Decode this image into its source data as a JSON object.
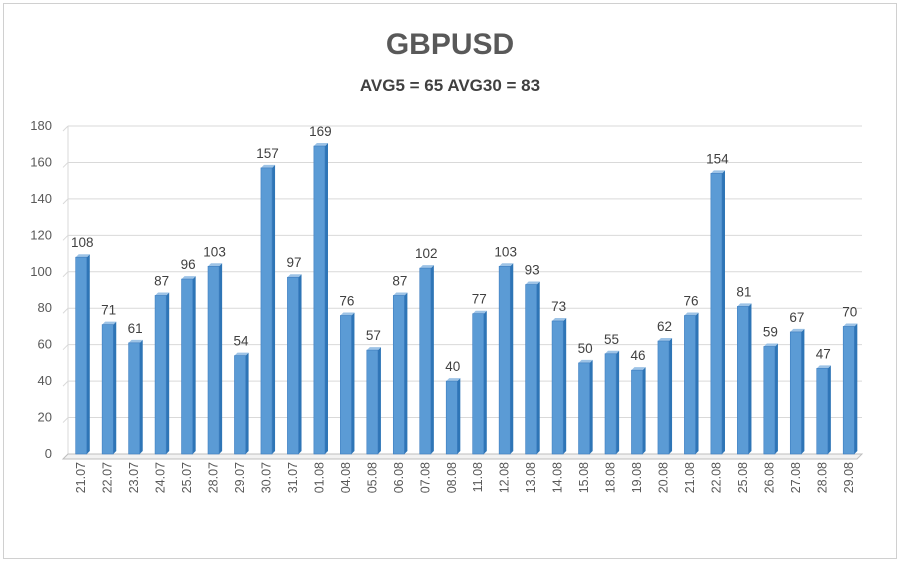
{
  "chart_data": {
    "type": "bar",
    "title": "GBPUSD",
    "subtitle": "AVG5 = 65 AVG30 = 83",
    "xlabel": "",
    "ylabel": "",
    "ylim": [
      0,
      180
    ],
    "yticks": [
      0,
      20,
      40,
      60,
      80,
      100,
      120,
      140,
      160,
      180
    ],
    "grid": true,
    "legend": "none",
    "bar_color": "#5b9bd5",
    "categories": [
      "21.07",
      "22.07",
      "23.07",
      "24.07",
      "25.07",
      "28.07",
      "29.07",
      "30.07",
      "31.07",
      "01.08",
      "04.08",
      "05.08",
      "06.08",
      "07.08",
      "08.08",
      "11.08",
      "12.08",
      "13.08",
      "14.08",
      "15.08",
      "18.08",
      "19.08",
      "20.08",
      "21.08",
      "22.08",
      "25.08",
      "26.08",
      "27.08",
      "28.08",
      "29.08"
    ],
    "values": [
      108,
      71,
      61,
      87,
      96,
      103,
      54,
      157,
      97,
      169,
      76,
      57,
      87,
      102,
      40,
      77,
      103,
      93,
      73,
      50,
      55,
      46,
      62,
      76,
      154,
      81,
      59,
      67,
      47,
      70
    ]
  }
}
